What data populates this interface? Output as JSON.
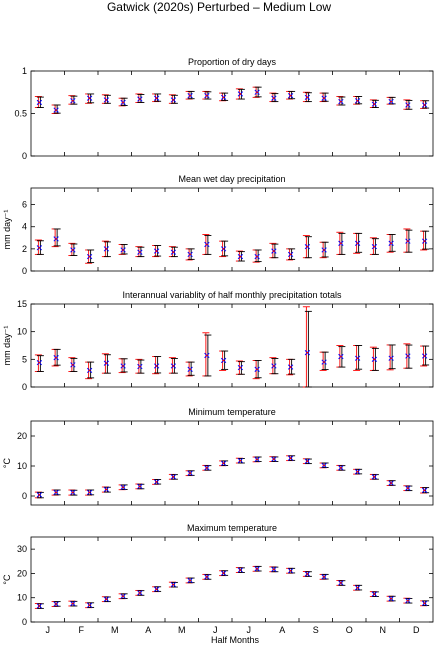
{
  "figure_title": "Gatwick (2020s) Perturbed – Medium Low",
  "x_axis": {
    "label": "Half Months",
    "tick_labels": [
      "J",
      "F",
      "M",
      "A",
      "M",
      "J",
      "J",
      "A",
      "S",
      "O",
      "N",
      "D"
    ]
  },
  "colors": {
    "red_marker": "#ff0000",
    "blue_marker": "#0000ff",
    "black_bar": "#000000"
  },
  "chart_data": [
    {
      "type": "scatter",
      "title": "Proportion of dry days",
      "ylabel": "",
      "ylim": [
        0,
        1
      ],
      "yticks": [
        0,
        0.5,
        1
      ],
      "ytick_labels": [
        "0",
        "0.5",
        "1"
      ],
      "x": [
        1,
        2,
        3,
        4,
        5,
        6,
        7,
        8,
        9,
        10,
        11,
        12,
        13,
        14,
        15,
        16,
        17,
        18,
        19,
        20,
        21,
        22,
        23,
        24
      ],
      "series": [
        {
          "values": [
            0.63,
            0.54,
            0.65,
            0.68,
            0.66,
            0.63,
            0.67,
            0.68,
            0.66,
            0.71,
            0.71,
            0.69,
            0.73,
            0.75,
            0.68,
            0.71,
            0.69,
            0.68,
            0.64,
            0.65,
            0.61,
            0.64,
            0.6,
            0.6
          ],
          "lower": [
            0.57,
            0.5,
            0.61,
            0.62,
            0.62,
            0.59,
            0.63,
            0.64,
            0.62,
            0.67,
            0.67,
            0.65,
            0.67,
            0.69,
            0.64,
            0.67,
            0.64,
            0.64,
            0.6,
            0.61,
            0.57,
            0.61,
            0.55,
            0.56
          ],
          "upper": [
            0.7,
            0.6,
            0.71,
            0.73,
            0.72,
            0.68,
            0.73,
            0.73,
            0.72,
            0.76,
            0.76,
            0.74,
            0.79,
            0.81,
            0.74,
            0.76,
            0.75,
            0.74,
            0.7,
            0.7,
            0.66,
            0.69,
            0.66,
            0.65
          ]
        }
      ]
    },
    {
      "type": "scatter",
      "title": "Mean wet day precipitation",
      "ylabel": "mm day⁻¹",
      "ylim": [
        0,
        7.5
      ],
      "yticks": [
        0,
        2,
        4,
        6
      ],
      "ytick_labels": [
        "0",
        "2",
        "4",
        "6"
      ],
      "x": [
        1,
        2,
        3,
        4,
        5,
        6,
        7,
        8,
        9,
        10,
        11,
        12,
        13,
        14,
        15,
        16,
        17,
        18,
        19,
        20,
        21,
        22,
        23,
        24
      ],
      "series": [
        {
          "values": [
            2.1,
            2.9,
            1.9,
            1.3,
            2.0,
            1.9,
            1.7,
            1.8,
            1.7,
            1.5,
            2.4,
            2.0,
            1.3,
            1.3,
            1.8,
            1.5,
            2.2,
            1.9,
            2.5,
            2.5,
            2.2,
            2.5,
            2.7,
            2.7
          ],
          "lower": [
            1.5,
            2.2,
            1.4,
            0.7,
            1.3,
            1.5,
            1.3,
            1.3,
            1.3,
            1.0,
            1.5,
            1.3,
            0.9,
            0.8,
            1.2,
            1.0,
            1.2,
            1.2,
            1.5,
            1.6,
            1.5,
            1.7,
            1.7,
            1.9
          ],
          "upper": [
            2.8,
            3.8,
            2.5,
            1.9,
            2.7,
            2.4,
            2.2,
            2.3,
            2.2,
            2.0,
            3.3,
            2.7,
            1.8,
            1.9,
            2.5,
            2.0,
            3.2,
            2.6,
            3.5,
            3.4,
            3.0,
            3.3,
            3.8,
            3.6
          ]
        }
      ]
    },
    {
      "type": "scatter",
      "title": "Interannual variablity of half monthly precipitation totals",
      "ylabel": "mm day⁻¹",
      "ylim": [
        0,
        15
      ],
      "yticks": [
        0,
        5,
        10,
        15
      ],
      "ytick_labels": [
        "0",
        "5",
        "10",
        "15"
      ],
      "x": [
        1,
        2,
        3,
        4,
        5,
        6,
        7,
        8,
        9,
        10,
        11,
        12,
        13,
        14,
        15,
        16,
        17,
        18,
        19,
        20,
        21,
        22,
        23,
        24
      ],
      "series": [
        {
          "values": [
            4.4,
            5.3,
            4.0,
            3.0,
            4.3,
            3.8,
            3.7,
            3.8,
            3.8,
            3.2,
            5.7,
            4.8,
            3.5,
            3.2,
            3.8,
            3.6,
            6.2,
            4.5,
            5.5,
            5.2,
            5.0,
            5.2,
            5.6,
            5.6
          ],
          "lower": [
            2.8,
            3.8,
            2.8,
            1.5,
            2.5,
            2.6,
            2.5,
            2.4,
            2.5,
            2.0,
            2.0,
            3.0,
            2.3,
            1.5,
            2.4,
            2.2,
            0.0,
            3.0,
            3.6,
            3.0,
            3.0,
            3.1,
            3.4,
            3.8
          ],
          "upper": [
            5.8,
            6.8,
            5.3,
            4.5,
            6.0,
            5.1,
            5.0,
            5.5,
            5.3,
            4.5,
            9.8,
            6.5,
            4.7,
            4.8,
            5.3,
            5.0,
            14.5,
            6.3,
            7.5,
            7.5,
            7.2,
            7.6,
            7.8,
            7.4
          ]
        }
      ]
    },
    {
      "type": "scatter",
      "title": "Minimum temperature",
      "ylabel": "°C",
      "ylim": [
        -3,
        25
      ],
      "yticks": [
        0,
        10,
        20
      ],
      "ytick_labels": [
        "0",
        "10",
        "20"
      ],
      "x": [
        1,
        2,
        3,
        4,
        5,
        6,
        7,
        8,
        9,
        10,
        11,
        12,
        13,
        14,
        15,
        16,
        17,
        18,
        19,
        20,
        21,
        22,
        23,
        24
      ],
      "series": [
        {
          "values": [
            0.4,
            1.2,
            1.2,
            1.2,
            2.2,
            2.9,
            3.2,
            4.7,
            6.4,
            7.6,
            9.4,
            10.9,
            11.8,
            12.2,
            12.3,
            12.6,
            11.6,
            10.2,
            9.4,
            8.1,
            6.4,
            4.3,
            2.6,
            1.9
          ],
          "lower": [
            -0.6,
            0.3,
            0.3,
            0.3,
            1.3,
            2.1,
            2.4,
            3.9,
            5.6,
            6.8,
            8.6,
            10.1,
            11.0,
            11.4,
            11.5,
            11.8,
            10.8,
            9.4,
            8.6,
            7.3,
            5.6,
            3.5,
            1.8,
            1.0
          ],
          "upper": [
            1.3,
            2.0,
            2.0,
            2.0,
            3.0,
            3.7,
            4.0,
            5.5,
            7.2,
            8.4,
            10.2,
            11.7,
            12.6,
            13.0,
            13.1,
            13.4,
            12.4,
            11.0,
            10.2,
            8.9,
            7.2,
            5.1,
            3.4,
            2.8
          ]
        }
      ]
    },
    {
      "type": "scatter",
      "title": "Maximum temperature",
      "ylabel": "°C",
      "ylim": [
        0,
        35
      ],
      "yticks": [
        0,
        10,
        20,
        30
      ],
      "ytick_labels": [
        "0",
        "10",
        "20",
        "30"
      ],
      "x": [
        1,
        2,
        3,
        4,
        5,
        6,
        7,
        8,
        9,
        10,
        11,
        12,
        13,
        14,
        15,
        16,
        17,
        18,
        19,
        20,
        21,
        22,
        23,
        24
      ],
      "series": [
        {
          "values": [
            6.6,
            7.4,
            7.6,
            6.9,
            9.4,
            10.6,
            12.0,
            13.5,
            15.4,
            17.1,
            18.6,
            20.1,
            21.4,
            21.9,
            21.7,
            21.1,
            19.8,
            18.6,
            16.1,
            14.1,
            11.5,
            9.6,
            8.8,
            7.7
          ],
          "lower": [
            5.6,
            6.4,
            6.6,
            5.9,
            8.4,
            9.6,
            11.0,
            12.5,
            14.4,
            16.1,
            17.6,
            19.1,
            20.4,
            20.9,
            20.7,
            20.1,
            18.8,
            17.6,
            15.1,
            13.1,
            10.5,
            8.6,
            7.8,
            6.7
          ],
          "upper": [
            7.6,
            8.4,
            8.6,
            7.9,
            10.4,
            11.6,
            13.0,
            14.5,
            16.4,
            18.1,
            19.6,
            21.1,
            22.4,
            22.9,
            22.7,
            22.1,
            20.8,
            19.6,
            17.1,
            15.1,
            12.5,
            10.6,
            9.8,
            8.7
          ]
        }
      ]
    }
  ]
}
